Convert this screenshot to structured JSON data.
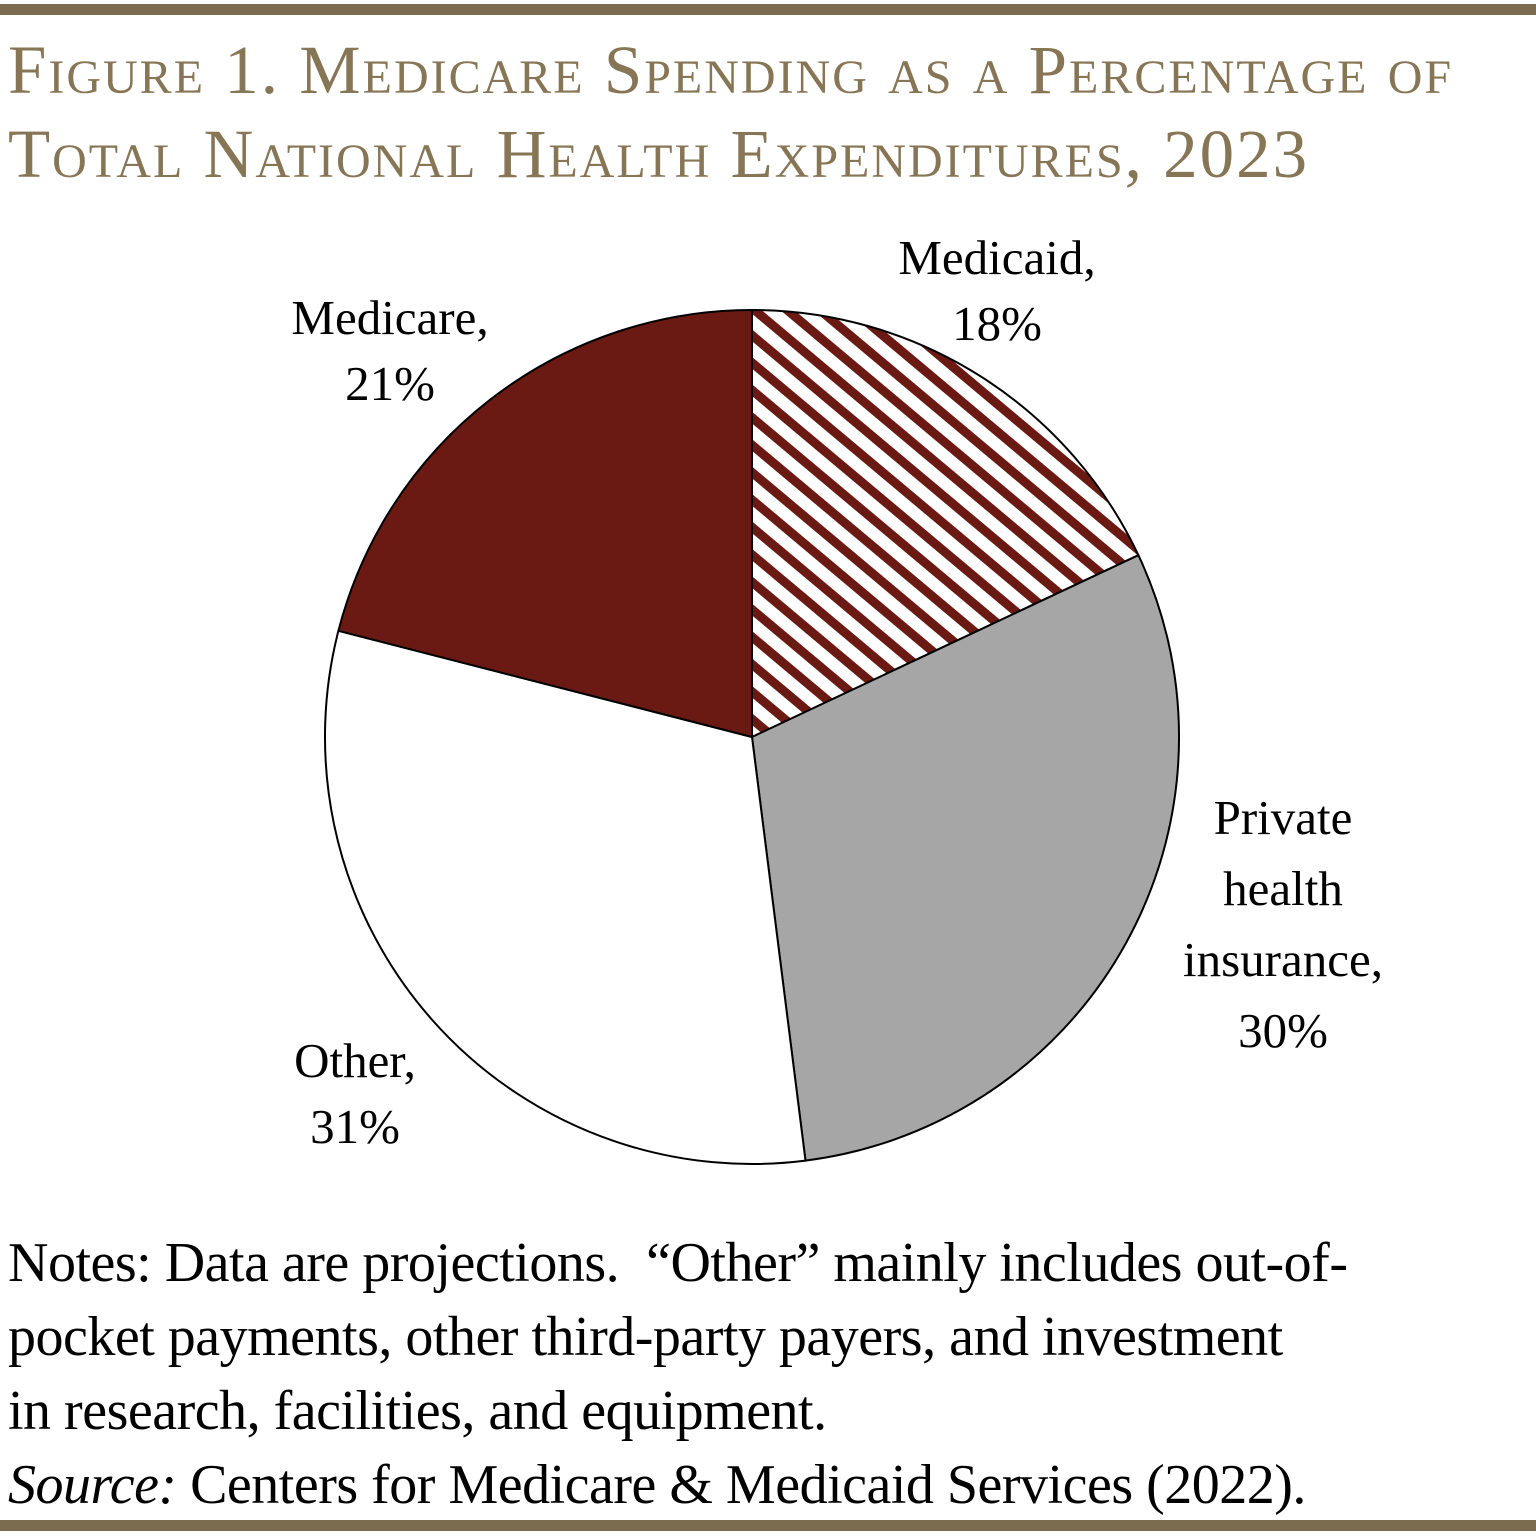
{
  "figure": {
    "rule_color": "#7b6b4f",
    "title": {
      "line1": "Figure 1. Medicare Spending as a Percentage of",
      "line2": "Total National Health Expenditures, 2023",
      "color": "#877656"
    }
  },
  "chart_data": {
    "type": "pie",
    "title": "Medicare Spending as a Percentage of Total National Health Expenditures, 2023",
    "direction": "clockwise",
    "start_angle": "12 o'clock",
    "outline_color": "#000000",
    "slices": [
      {
        "label": "Medicaid",
        "value_pct": 18,
        "fill": "hatch",
        "hatch_fg": "#6b1a13",
        "hatch_bg": "#ffffff",
        "hatch_style": "diagonal stripes descending left to right"
      },
      {
        "label": "Private health insurance",
        "value_pct": 30,
        "fill": "#a6a6a6"
      },
      {
        "label": "Other",
        "value_pct": 31,
        "fill": "#ffffff"
      },
      {
        "label": "Medicare",
        "value_pct": 21,
        "fill": "#6b1a13"
      }
    ],
    "labels": {
      "medicaid": [
        "Medicaid,",
        "18%"
      ],
      "private": [
        "Private",
        "health",
        "insurance,",
        "30%"
      ],
      "other": [
        "Other,",
        "31%"
      ],
      "medicare": [
        "Medicare,",
        "21%"
      ]
    }
  },
  "notes": {
    "line1": "Notes: Data are projections.  “Other” mainly includes out-of-",
    "line2": "pocket payments, other third-party payers, and investment",
    "line3": "in research, facilities, and equipment.",
    "source_label": "Source:",
    "source_rest": " Centers for Medicare & Medicaid Services (2022)."
  }
}
